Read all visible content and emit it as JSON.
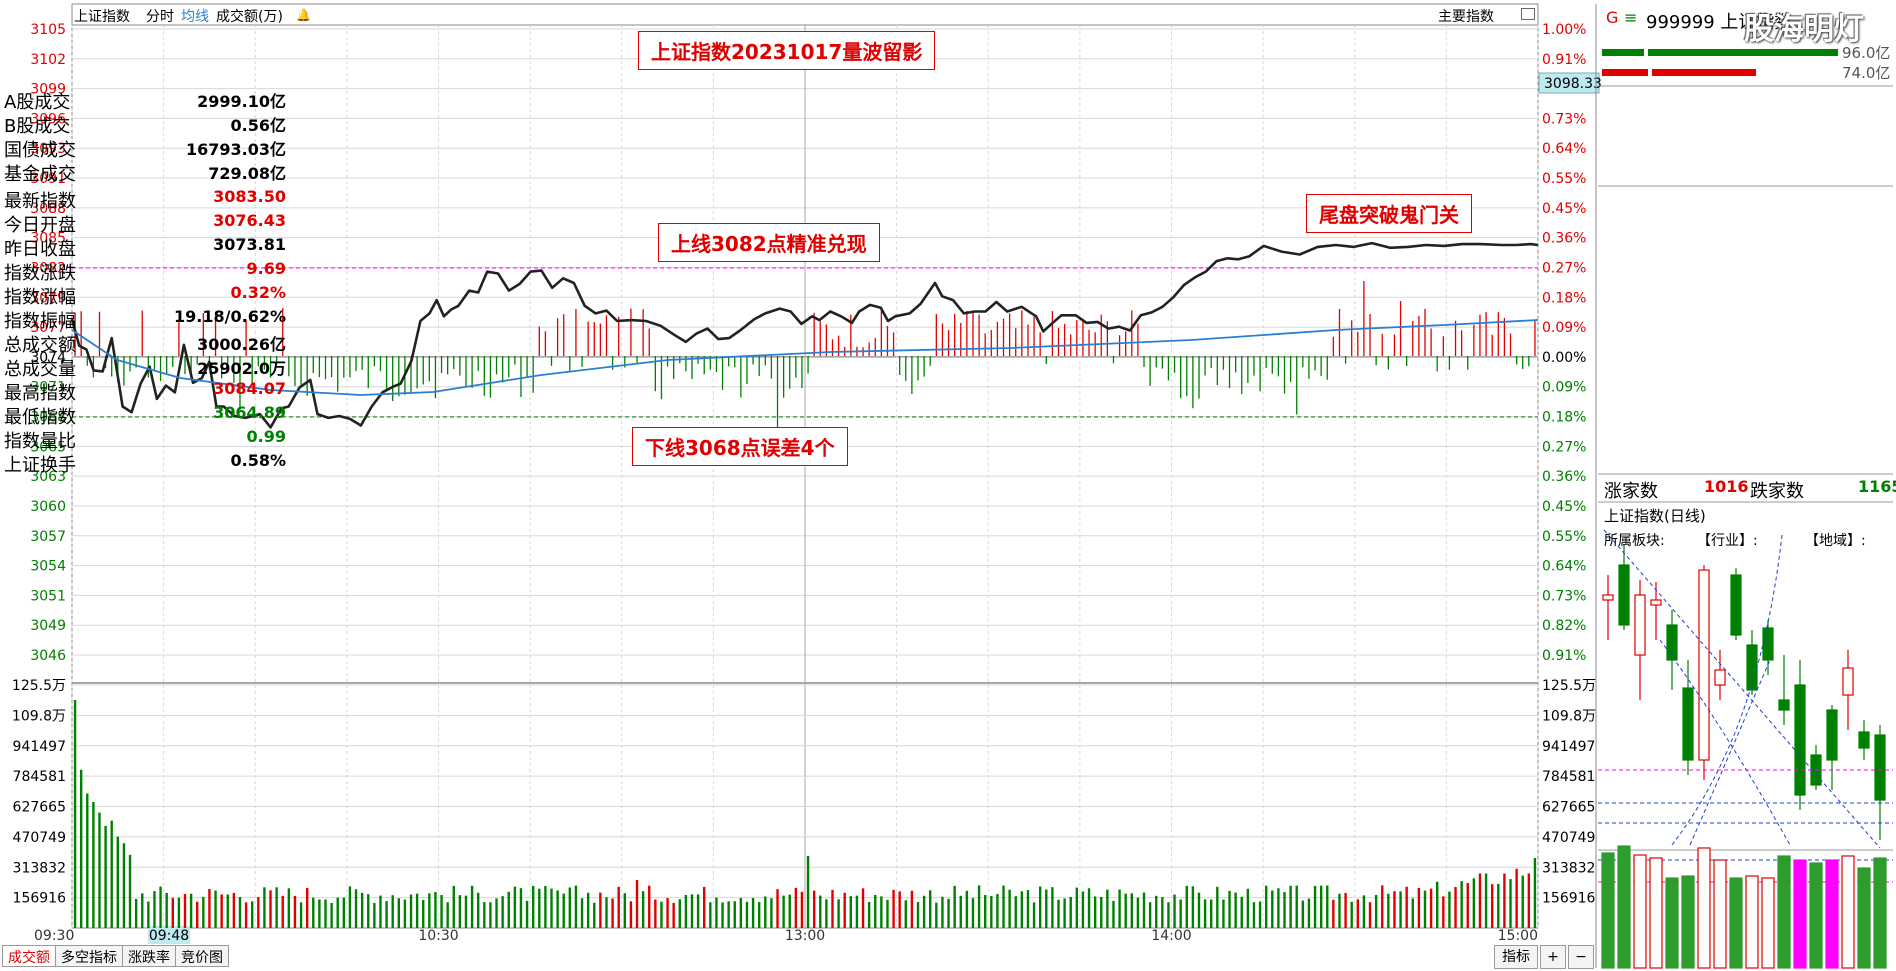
{
  "header": {
    "title": "上证指数",
    "tab_minute": "分时",
    "tab_avg": "均线",
    "volume_label": "成交额(万)",
    "main_index_label": "主要指数"
  },
  "annotations": {
    "title": "上证指数20231017量波留影",
    "upper": "上线3082点精准兑现",
    "tail": "尾盘突破鬼门关",
    "lower": "下线3068点误差4个"
  },
  "price_axis": {
    "left_labels": [
      "3105",
      "3102",
      "3099",
      "3096",
      "3093",
      "3091",
      "3088",
      "3085",
      "3082",
      "3079",
      "3077",
      "3074",
      "3071",
      "3068",
      "3065",
      "3063",
      "3060",
      "3057",
      "3054",
      "3051",
      "3049",
      "3046"
    ],
    "right_labels": [
      "1.00%",
      "0.91%",
      "0.82%",
      "0.73%",
      "0.64%",
      "0.55%",
      "0.45%",
      "0.36%",
      "0.27%",
      "0.18%",
      "0.09%",
      "0.00%",
      "0.09%",
      "0.18%",
      "0.27%",
      "0.36%",
      "0.45%",
      "0.55%",
      "0.64%",
      "0.73%",
      "0.82%",
      "0.91%"
    ],
    "current_tag": "3098.33"
  },
  "volume_axis": {
    "labels": [
      "125.5万",
      "109.8万",
      "941497",
      "784581",
      "627665",
      "470749",
      "313832",
      "156916"
    ]
  },
  "time_axis": {
    "labels": [
      "09:30",
      "10:30",
      "13:00",
      "14:00",
      "15:00"
    ],
    "cursor_time": "09:48"
  },
  "bottom_tabs": [
    "成交额",
    "多空指标",
    "涨跌率",
    "竞价图"
  ],
  "bottom_right": {
    "indicator": "指标",
    "plus": "+",
    "minus": "−"
  },
  "side": {
    "code_prefix": "G",
    "code_line": "999999 上证指数",
    "bar_values": [
      "96.0亿",
      "74.0亿"
    ],
    "watermark": "股海明灯",
    "turnover": [
      {
        "label": "A股成交",
        "value": "2999.10亿"
      },
      {
        "label": "B股成交",
        "value": "0.56亿"
      },
      {
        "label": "国债成交",
        "value": "16793.03亿"
      },
      {
        "label": "基金成交",
        "value": "729.08亿"
      }
    ],
    "stats": [
      {
        "label": "最新指数",
        "value": "3083.50",
        "color": "red"
      },
      {
        "label": "今日开盘",
        "value": "3076.43",
        "color": "red"
      },
      {
        "label": "昨日收盘",
        "value": "3073.81",
        "color": "black"
      },
      {
        "label": "指数涨跌",
        "value": "9.69",
        "color": "red"
      },
      {
        "label": "指数涨幅",
        "value": "0.32%",
        "color": "red"
      },
      {
        "label": "指数振幅",
        "value": "19.18/0.62%",
        "color": "black"
      },
      {
        "label": "总成交额",
        "value": "3000.26亿",
        "color": "black"
      },
      {
        "label": "总成交量",
        "value": "25902.0万",
        "color": "black"
      },
      {
        "label": "最高指数",
        "value": "3084.07",
        "color": "red"
      },
      {
        "label": "最低指数",
        "value": "3064.89",
        "color": "green"
      },
      {
        "label": "指数量比",
        "value": "0.99",
        "color": "green"
      },
      {
        "label": "上证换手",
        "value": "0.58%",
        "color": "black"
      }
    ],
    "up_label": "涨家数",
    "up_value": "1016",
    "down_label": "跌家数",
    "down_value": "1165",
    "daily_title": "上证指数(日线)",
    "sector_label": "所属板块:",
    "industry_label": "【行业】:",
    "region_label": "【地域】:"
  },
  "colors": {
    "up": "#e00000",
    "down": "#008000",
    "price_line": "#222222",
    "avg_line": "#2a7fd4",
    "magenta": "#ff00ff"
  }
}
